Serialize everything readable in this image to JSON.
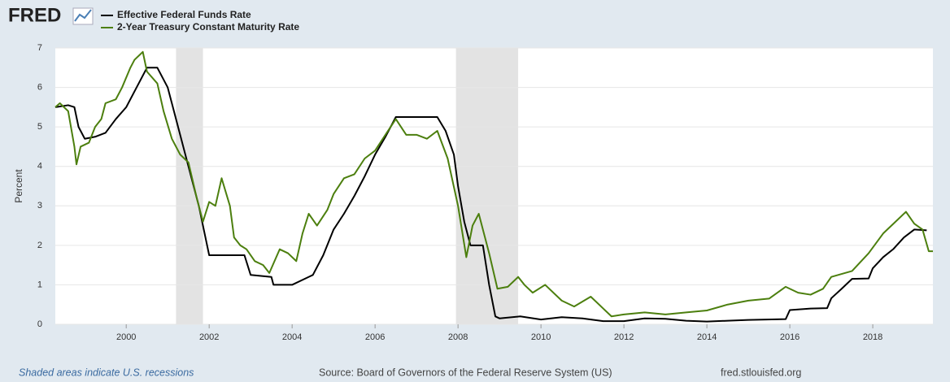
{
  "logo": "FRED",
  "chart_data": {
    "type": "line",
    "ylabel": "Percent",
    "xlim": [
      1998.29,
      2019.45
    ],
    "xticks": [
      2000,
      2002,
      2004,
      2006,
      2008,
      2010,
      2012,
      2014,
      2016,
      2018
    ],
    "ylim": [
      0,
      7
    ],
    "yticks": [
      0,
      1,
      2,
      3,
      4,
      5,
      6,
      7
    ],
    "grid": true,
    "recessions": [
      [
        2001.2,
        2001.85
      ],
      [
        2007.95,
        2009.45
      ]
    ],
    "series": [
      {
        "name": "Effective Federal Funds Rate",
        "color": "#000000",
        "x": [
          1998.29,
          1998.6,
          1998.75,
          1998.85,
          1999.0,
          1999.25,
          1999.5,
          1999.75,
          2000.0,
          2000.25,
          2000.5,
          2000.75,
          2001.0,
          2001.25,
          2001.5,
          2001.75,
          2002.0,
          2002.5,
          2002.85,
          2003.0,
          2003.5,
          2003.55,
          2004.0,
          2004.5,
          2004.75,
          2005.0,
          2005.25,
          2005.5,
          2005.75,
          2006.0,
          2006.25,
          2006.5,
          2007.0,
          2007.5,
          2007.7,
          2007.9,
          2008.0,
          2008.15,
          2008.3,
          2008.6,
          2008.75,
          2008.9,
          2009.0,
          2009.5,
          2010.0,
          2010.5,
          2011.0,
          2011.5,
          2012.0,
          2012.5,
          2013.0,
          2013.5,
          2014.0,
          2014.5,
          2015.0,
          2015.9,
          2016.0,
          2016.5,
          2016.9,
          2017.0,
          2017.25,
          2017.5,
          2017.9,
          2018.0,
          2018.25,
          2018.5,
          2018.75,
          2019.0,
          2019.3
        ],
        "values": [
          5.5,
          5.55,
          5.5,
          5.0,
          4.7,
          4.75,
          4.85,
          5.2,
          5.5,
          6.0,
          6.5,
          6.5,
          6.0,
          5.0,
          4.0,
          3.0,
          1.75,
          1.75,
          1.75,
          1.25,
          1.2,
          1.0,
          1.0,
          1.25,
          1.75,
          2.4,
          2.8,
          3.25,
          3.75,
          4.3,
          4.75,
          5.25,
          5.25,
          5.25,
          4.9,
          4.3,
          3.5,
          2.6,
          2.0,
          2.0,
          1.0,
          0.2,
          0.15,
          0.2,
          0.12,
          0.18,
          0.15,
          0.08,
          0.08,
          0.15,
          0.14,
          0.09,
          0.07,
          0.09,
          0.11,
          0.13,
          0.36,
          0.4,
          0.41,
          0.66,
          0.9,
          1.15,
          1.16,
          1.42,
          1.7,
          1.91,
          2.2,
          2.4,
          2.38
        ]
      },
      {
        "name": "2-Year Treasury Constant Maturity Rate",
        "color": "#4c7f0e",
        "x": [
          1998.29,
          1998.4,
          1998.6,
          1998.75,
          1998.8,
          1998.9,
          1999.1,
          1999.25,
          1999.4,
          1999.5,
          1999.75,
          1999.9,
          2000.1,
          2000.2,
          2000.4,
          2000.5,
          2000.75,
          2000.9,
          2001.1,
          2001.3,
          2001.5,
          2001.7,
          2001.85,
          2002.0,
          2002.15,
          2002.3,
          2002.5,
          2002.6,
          2002.75,
          2002.9,
          2003.1,
          2003.3,
          2003.45,
          2003.7,
          2003.9,
          2004.1,
          2004.25,
          2004.4,
          2004.6,
          2004.85,
          2005.0,
          2005.25,
          2005.5,
          2005.75,
          2006.0,
          2006.25,
          2006.5,
          2006.75,
          2007.0,
          2007.25,
          2007.5,
          2007.75,
          2008.0,
          2008.2,
          2008.35,
          2008.5,
          2008.75,
          2008.95,
          2009.2,
          2009.45,
          2009.6,
          2009.8,
          2010.1,
          2010.5,
          2010.8,
          2011.2,
          2011.5,
          2011.7,
          2012.0,
          2012.5,
          2013.0,
          2013.5,
          2014.0,
          2014.5,
          2015.0,
          2015.5,
          2015.9,
          2016.2,
          2016.5,
          2016.8,
          2017.0,
          2017.5,
          2017.9,
          2018.25,
          2018.5,
          2018.8,
          2019.0,
          2019.2,
          2019.35,
          2019.45
        ],
        "values": [
          5.5,
          5.6,
          5.4,
          4.5,
          4.05,
          4.5,
          4.6,
          5.0,
          5.2,
          5.6,
          5.7,
          6.0,
          6.5,
          6.7,
          6.9,
          6.4,
          6.1,
          5.4,
          4.7,
          4.3,
          4.1,
          3.2,
          2.6,
          3.1,
          3.0,
          3.7,
          3.0,
          2.2,
          2.0,
          1.9,
          1.6,
          1.5,
          1.3,
          1.9,
          1.8,
          1.6,
          2.3,
          2.8,
          2.5,
          2.9,
          3.3,
          3.7,
          3.8,
          4.2,
          4.4,
          4.8,
          5.2,
          4.8,
          4.8,
          4.7,
          4.9,
          4.2,
          3.0,
          1.7,
          2.5,
          2.8,
          1.8,
          0.9,
          0.95,
          1.2,
          1.0,
          0.8,
          1.0,
          0.6,
          0.45,
          0.7,
          0.4,
          0.2,
          0.25,
          0.3,
          0.25,
          0.3,
          0.35,
          0.5,
          0.6,
          0.65,
          0.95,
          0.8,
          0.75,
          0.9,
          1.2,
          1.35,
          1.8,
          2.3,
          2.55,
          2.85,
          2.55,
          2.4,
          1.85,
          1.85
        ]
      }
    ]
  },
  "footer": {
    "note": "Shaded areas indicate U.S. recessions",
    "source": "Source: Board of Governors of the Federal Reserve System (US)",
    "site": "fred.stlouisfed.org"
  }
}
